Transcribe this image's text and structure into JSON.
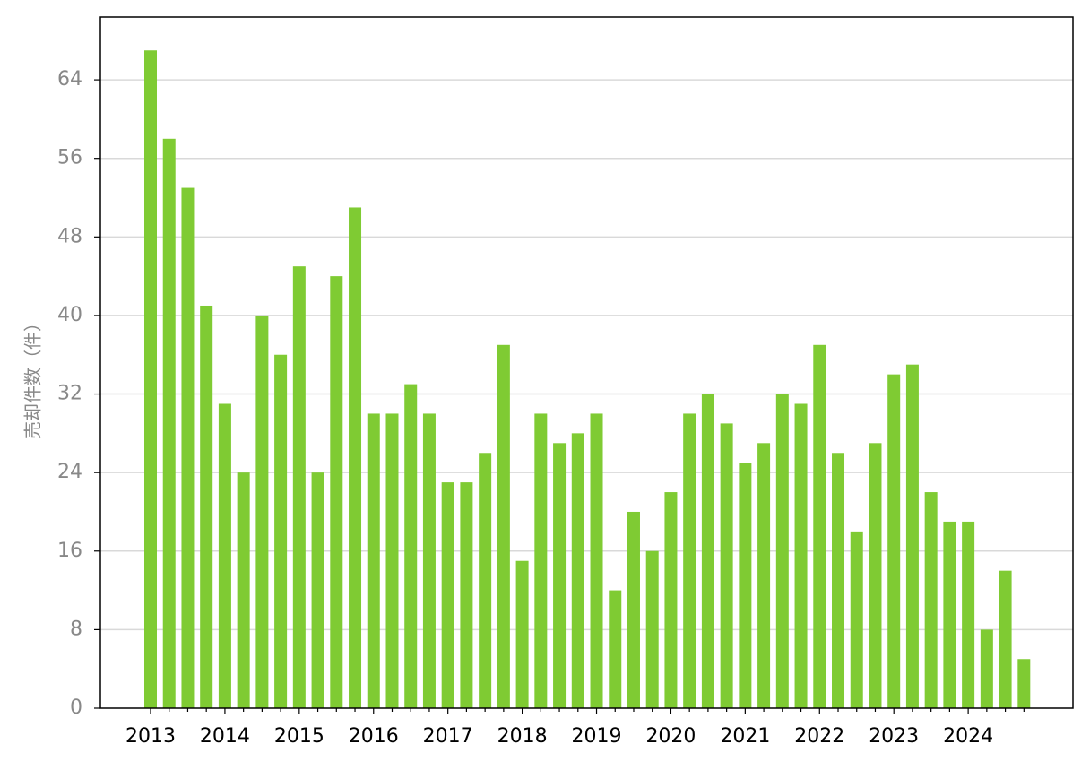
{
  "chart_data": {
    "type": "bar",
    "y_label": "売却件数（件）",
    "categories": [
      "2013",
      null,
      null,
      null,
      "2014",
      null,
      null,
      null,
      "2015",
      null,
      null,
      null,
      "2016",
      null,
      null,
      null,
      "2017",
      null,
      null,
      null,
      "2018",
      null,
      null,
      null,
      "2019",
      null,
      null,
      null,
      "2020",
      null,
      null,
      null,
      "2021",
      null,
      null,
      null,
      "2022",
      null,
      null,
      null,
      "2023",
      null,
      null,
      null,
      "2024",
      null,
      null,
      null
    ],
    "values": [
      67,
      58,
      53,
      41,
      31,
      24,
      40,
      36,
      45,
      24,
      44,
      51,
      30,
      30,
      33,
      30,
      23,
      23,
      26,
      37,
      15,
      30,
      27,
      28,
      30,
      12,
      20,
      16,
      22,
      30,
      32,
      29,
      25,
      27,
      32,
      31,
      37,
      26,
      18,
      27,
      34,
      35,
      22,
      19,
      19,
      8,
      14,
      5
    ],
    "color": "#7fcb33",
    "ylim": [
      0,
      70.4
    ],
    "yticks": [
      0,
      8,
      16,
      24,
      32,
      40,
      48,
      56,
      64
    ],
    "grid": true
  }
}
